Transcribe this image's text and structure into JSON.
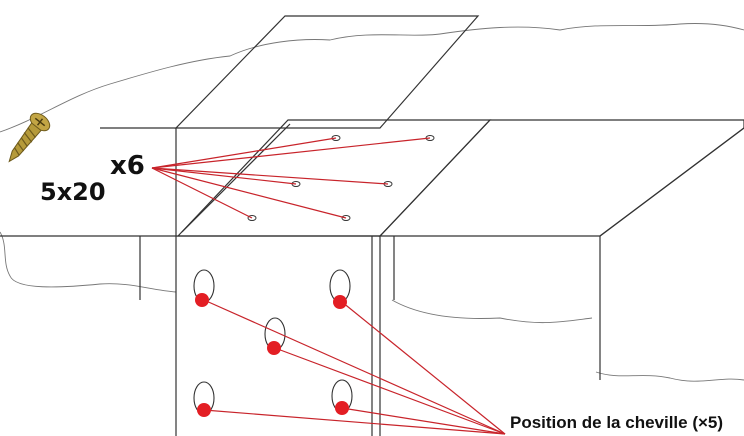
{
  "labels": {
    "screw_quantity": "x6",
    "screw_size": "5x20",
    "anchor_position": "Position de la cheville (×5)"
  },
  "icons": {
    "screw": "screw-icon"
  },
  "colors": {
    "line": "#333333",
    "leader": "#c8242b",
    "dot": "#e31e24",
    "screw_gold": "#b59a3a"
  }
}
